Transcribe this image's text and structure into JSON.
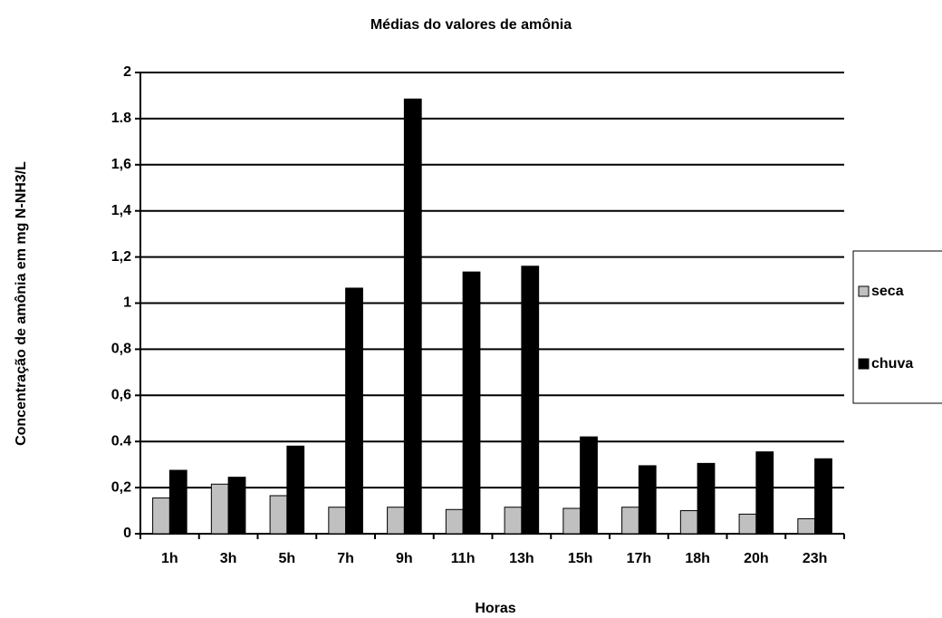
{
  "chart_data": {
    "type": "bar",
    "title": "Médias do valores de amônia",
    "xlabel": "Horas",
    "ylabel": "Concentração de amônia em mg N-NH3/L",
    "categories": [
      "1h",
      "3h",
      "5h",
      "7h",
      "9h",
      "11h",
      "13h",
      "15h",
      "17h",
      "18h",
      "20h",
      "23h"
    ],
    "series": [
      {
        "name": "seca",
        "color": "#c0c0c0",
        "values": [
          0.155,
          0.215,
          0.165,
          0.115,
          0.115,
          0.105,
          0.115,
          0.11,
          0.115,
          0.1,
          0.085,
          0.065
        ]
      },
      {
        "name": "chuva",
        "color": "#000000",
        "values": [
          0.275,
          0.245,
          0.38,
          1.065,
          1.885,
          1.135,
          1.16,
          0.42,
          0.295,
          0.305,
          0.355,
          0.325
        ]
      }
    ],
    "ylim": [
      0,
      2
    ],
    "yticks": [
      0,
      {
        "value": 0.2,
        "label": "0,2"
      },
      {
        "value": 0.4,
        "label": "0.4"
      },
      {
        "value": 0.6,
        "label": "0,6"
      },
      {
        "value": 0.8,
        "label": "0,8"
      },
      1,
      {
        "value": 1.2,
        "label": "1,2"
      },
      {
        "value": 1.4,
        "label": "1,4"
      },
      {
        "value": 1.6,
        "label": "1,6"
      },
      {
        "value": 1.8,
        "label": "1.8"
      },
      2
    ],
    "grid": true,
    "legend": "right"
  }
}
